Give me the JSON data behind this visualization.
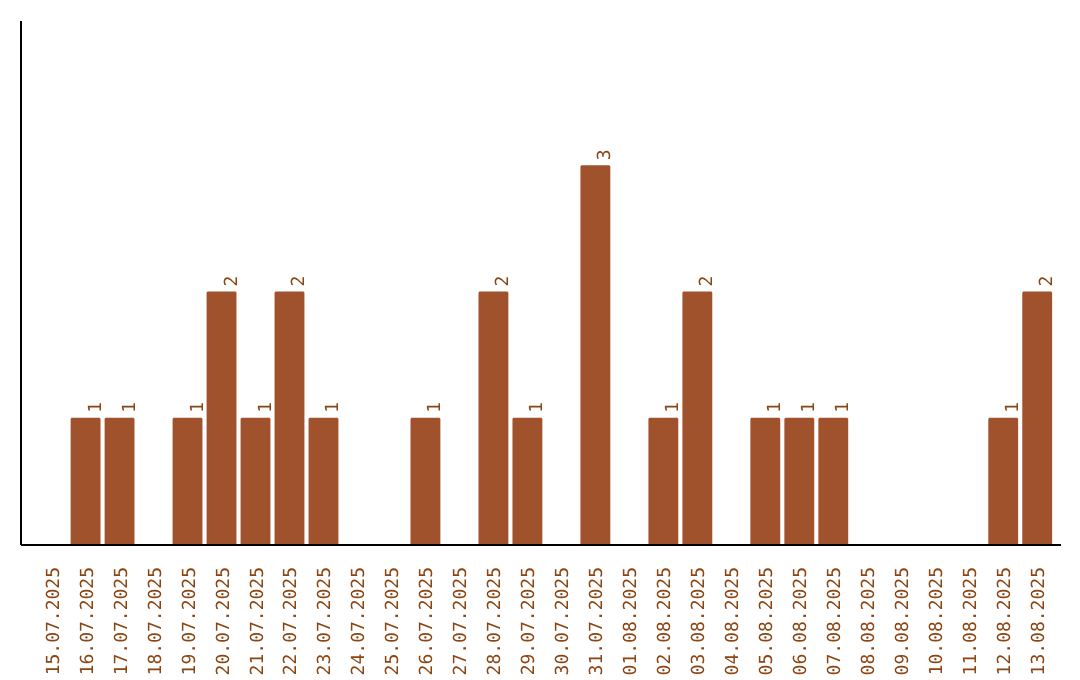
{
  "chart_data": {
    "type": "bar",
    "categories": [
      "15.07.2025",
      "16.07.2025",
      "17.07.2025",
      "18.07.2025",
      "19.07.2025",
      "20.07.2025",
      "21.07.2025",
      "22.07.2025",
      "23.07.2025",
      "24.07.2025",
      "25.07.2025",
      "26.07.2025",
      "27.07.2025",
      "28.07.2025",
      "29.07.2025",
      "30.07.2025",
      "31.07.2025",
      "01.08.2025",
      "02.08.2025",
      "03.08.2025",
      "04.08.2025",
      "05.08.2025",
      "06.08.2025",
      "07.08.2025",
      "08.08.2025",
      "09.08.2025",
      "10.08.2025",
      "11.08.2025",
      "12.08.2025",
      "13.08.2025"
    ],
    "values": [
      0,
      1,
      1,
      0,
      1,
      2,
      1,
      2,
      1,
      0,
      0,
      1,
      0,
      2,
      1,
      0,
      3,
      0,
      1,
      2,
      0,
      1,
      1,
      1,
      0,
      0,
      0,
      0,
      1,
      2
    ],
    "value_labels": [
      null,
      "1",
      "1",
      null,
      "1",
      "2",
      "1",
      "2",
      "1",
      null,
      null,
      "1",
      null,
      "2",
      "1",
      null,
      "3",
      null,
      "1",
      "2",
      null,
      "1",
      "1",
      "1",
      null,
      null,
      null,
      null,
      "1",
      "2"
    ],
    "color": "#a0522d",
    "ylim": [
      0,
      4.15
    ],
    "tick_labels": "x",
    "grid": false
  }
}
